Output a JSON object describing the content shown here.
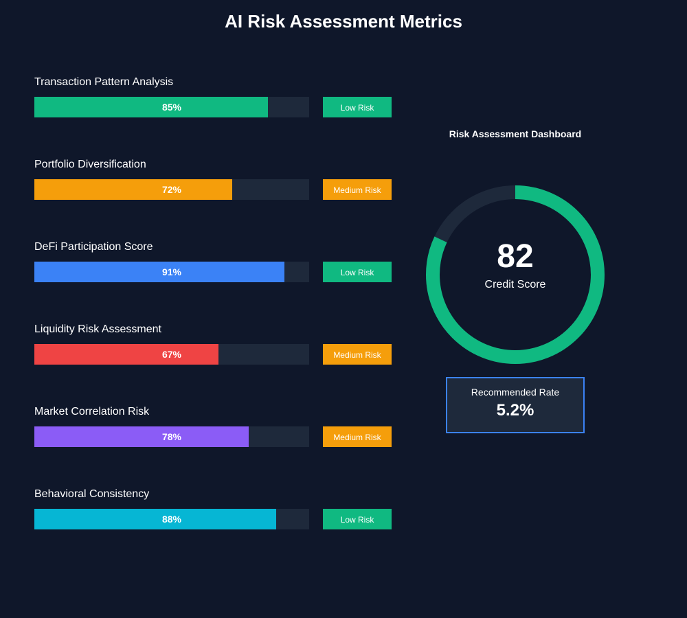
{
  "title": "AI Risk Assessment Metrics",
  "colors": {
    "background": "#0f172a",
    "track": "#1e293b",
    "low_risk": "#10b981",
    "medium_risk": "#f59e0b",
    "rate_border": "#3b82f6"
  },
  "chart_data": {
    "type": "bar",
    "orientation": "horizontal",
    "categories": [
      "Transaction Pattern Analysis",
      "Portfolio Diversification",
      "DeFi Participation Score",
      "Liquidity Risk Assessment",
      "Market Correlation Risk",
      "Behavioral Consistency"
    ],
    "values": [
      85,
      72,
      91,
      67,
      78,
      88
    ],
    "ylim": [
      0,
      100
    ],
    "metrics": [
      {
        "label": "Transaction Pattern Analysis",
        "value": 85,
        "value_label": "85%",
        "color": "#10b981",
        "risk": "Low Risk",
        "risk_color": "#10b981"
      },
      {
        "label": "Portfolio Diversification",
        "value": 72,
        "value_label": "72%",
        "color": "#f59e0b",
        "risk": "Medium Risk",
        "risk_color": "#f59e0b"
      },
      {
        "label": "DeFi Participation Score",
        "value": 91,
        "value_label": "91%",
        "color": "#3b82f6",
        "risk": "Low Risk",
        "risk_color": "#10b981"
      },
      {
        "label": "Liquidity Risk Assessment",
        "value": 67,
        "value_label": "67%",
        "color": "#ef4444",
        "risk": "Medium Risk",
        "risk_color": "#f59e0b"
      },
      {
        "label": "Market Correlation Risk",
        "value": 78,
        "value_label": "78%",
        "color": "#8b5cf6",
        "risk": "Medium Risk",
        "risk_color": "#f59e0b"
      },
      {
        "label": "Behavioral Consistency",
        "value": 88,
        "value_label": "88%",
        "color": "#06b6d4",
        "risk": "Low Risk",
        "risk_color": "#10b981"
      }
    ]
  },
  "dashboard": {
    "title": "Risk Assessment Dashboard",
    "score": "82",
    "score_value": 82,
    "score_max": 100,
    "score_label": "Credit Score",
    "gauge_color": "#10b981",
    "gauge_track_color": "#1e293b",
    "rate_label": "Recommended Rate",
    "rate_value": "5.2%"
  }
}
